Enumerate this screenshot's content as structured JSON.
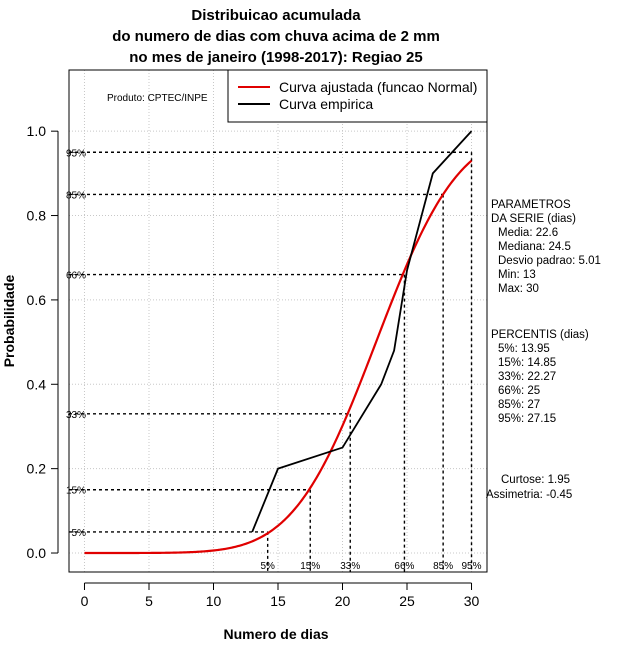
{
  "chart_data": {
    "type": "line",
    "title": [
      "Distribuicao acumulada",
      "do numero de dias com chuva acima de 2 mm",
      "no mes de janeiro (1998-2017): Regiao 25"
    ],
    "xlabel": "Numero de dias",
    "ylabel": "Probabilidade",
    "xlim": [
      -1.2,
      31.2
    ],
    "ylim": [
      -0.045,
      1.145
    ],
    "x_ticks": [
      0,
      5,
      10,
      15,
      20,
      25,
      30
    ],
    "y_ticks": [
      0.0,
      0.2,
      0.4,
      0.6,
      0.8,
      1.0
    ],
    "y_tick_labels": [
      "0.0",
      "0.2",
      "0.4",
      "0.6",
      "0.8",
      "1.0"
    ],
    "grid": true,
    "produto": "Produto: CPTEC/INPE",
    "legend": {
      "position": "top-right",
      "entries": [
        {
          "label": "Curva ajustada (funcao Normal)",
          "color": "#e00000"
        },
        {
          "label": "Curva empirica",
          "color": "#000000"
        }
      ]
    },
    "series": [
      {
        "name": "Curva ajustada (funcao Normal)",
        "kind": "normal_cdf",
        "mean": 22.6,
        "sd": 5.01,
        "x_range": [
          0,
          30
        ],
        "color": "#e00000"
      },
      {
        "name": "Curva empirica",
        "color": "#000000",
        "x": [
          13,
          15,
          20,
          21,
          23,
          24,
          25,
          27,
          30
        ],
        "y": [
          0.05,
          0.2,
          0.25,
          0.3,
          0.4,
          0.48,
          0.67,
          0.9,
          1.0
        ]
      }
    ],
    "percentile_lines": [
      {
        "label": "5%",
        "x": 14.2,
        "y": 0.05
      },
      {
        "label": "15%",
        "x": 17.5,
        "y": 0.15
      },
      {
        "label": "33%",
        "x": 20.6,
        "y": 0.33
      },
      {
        "label": "66%",
        "x": 24.8,
        "y": 0.66
      },
      {
        "label": "85%",
        "x": 27.8,
        "y": 0.85
      },
      {
        "label": "95%",
        "x": 30.0,
        "y": 0.95
      }
    ],
    "parametros": {
      "heading": [
        "PARAMETROS",
        "DA SERIE (dias)"
      ],
      "lines": [
        "Media: 22.6",
        "Mediana: 24.5",
        "Desvio padrao: 5.01",
        "Min: 13",
        "Max: 30"
      ]
    },
    "percentis": {
      "heading": "PERCENTIS (dias)",
      "lines": [
        "5%: 13.95",
        "15%: 14.85",
        "33%: 22.27",
        "66%: 25",
        "85%: 27",
        "95%: 27.15"
      ]
    },
    "curtose": "Curtose: 1.95",
    "assimetria": "Assimetria: -0.45"
  }
}
